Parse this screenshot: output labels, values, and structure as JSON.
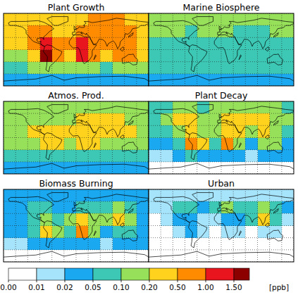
{
  "chart_data": {
    "type": "heatmap",
    "xlim": [
      -180,
      180
    ],
    "ylim": [
      -90,
      90
    ],
    "xticks": [
      -180,
      -150,
      -120,
      -90,
      -60,
      -30,
      0,
      30,
      60,
      90,
      120,
      150,
      180
    ],
    "yticks": [
      -90,
      -60,
      -30,
      0,
      30,
      60,
      90
    ],
    "grid": true,
    "tick_labels": false,
    "panels": [
      {
        "title": "Plant Growth",
        "cells": [
          [
            0.3,
            0.3,
            0.4,
            0.4,
            0.3,
            0.3,
            0.4,
            0.5,
            0.5,
            0.5,
            0.4,
            0.3
          ],
          [
            0.3,
            0.4,
            0.7,
            0.8,
            0.4,
            0.3,
            0.6,
            0.7,
            0.7,
            0.8,
            0.6,
            0.4
          ],
          [
            0.2,
            0.3,
            0.5,
            1.2,
            0.6,
            0.5,
            1.2,
            0.8,
            0.7,
            0.8,
            0.5,
            0.3
          ],
          [
            0.12,
            0.15,
            0.2,
            1.6,
            0.9,
            0.4,
            1.3,
            0.6,
            0.3,
            0.5,
            0.6,
            0.2
          ],
          [
            0.08,
            0.08,
            0.1,
            0.15,
            0.12,
            0.1,
            0.12,
            0.1,
            0.08,
            0.1,
            0.15,
            0.1
          ],
          [
            0.04,
            0.04,
            0.04,
            0.04,
            0.04,
            0.04,
            0.04,
            0.04,
            0.04,
            0.04,
            0.04,
            0.04
          ]
        ]
      },
      {
        "title": "Marine Biosphere",
        "cells": [
          [
            0.12,
            0.12,
            0.12,
            0.12,
            0.12,
            0.15,
            0.12,
            0.12,
            0.12,
            0.12,
            0.12,
            0.12
          ],
          [
            0.12,
            0.1,
            0.1,
            0.08,
            0.12,
            0.12,
            0.1,
            0.08,
            0.08,
            0.08,
            0.1,
            0.12
          ],
          [
            0.08,
            0.07,
            0.07,
            0.06,
            0.08,
            0.08,
            0.06,
            0.06,
            0.05,
            0.06,
            0.08,
            0.08
          ],
          [
            0.06,
            0.06,
            0.06,
            0.05,
            0.06,
            0.06,
            0.05,
            0.06,
            0.06,
            0.05,
            0.05,
            0.06
          ],
          [
            0.06,
            0.06,
            0.06,
            0.06,
            0.06,
            0.06,
            0.06,
            0.06,
            0.06,
            0.06,
            0.06,
            0.06
          ],
          [
            0.04,
            0.04,
            0.04,
            0.04,
            0.04,
            0.04,
            0.04,
            0.04,
            0.04,
            0.04,
            0.04,
            0.04
          ]
        ]
      },
      {
        "title": "Atmos. Prod.",
        "cells": [
          [
            0.12,
            0.12,
            0.12,
            0.12,
            0.12,
            0.12,
            0.12,
            0.12,
            0.12,
            0.12,
            0.12,
            0.12
          ],
          [
            0.12,
            0.12,
            0.15,
            0.15,
            0.12,
            0.15,
            0.25,
            0.2,
            0.2,
            0.2,
            0.15,
            0.12
          ],
          [
            0.15,
            0.15,
            0.2,
            0.3,
            0.2,
            0.2,
            0.3,
            0.25,
            0.2,
            0.25,
            0.2,
            0.15
          ],
          [
            0.1,
            0.1,
            0.12,
            0.3,
            0.2,
            0.15,
            0.3,
            0.2,
            0.12,
            0.15,
            0.15,
            0.1
          ],
          [
            0.06,
            0.06,
            0.06,
            0.06,
            0.06,
            0.06,
            0.06,
            0.06,
            0.06,
            0.06,
            0.06,
            0.06
          ],
          [
            0.03,
            0.03,
            0.03,
            0.03,
            0.03,
            0.03,
            0.03,
            0.03,
            0.03,
            0.03,
            0.03,
            0.03
          ]
        ]
      },
      {
        "title": "Plant Decay",
        "cells": [
          [
            0.08,
            0.08,
            0.12,
            0.12,
            0.08,
            0.1,
            0.15,
            0.15,
            0.15,
            0.15,
            0.12,
            0.08
          ],
          [
            0.08,
            0.1,
            0.2,
            0.2,
            0.1,
            0.1,
            0.2,
            0.2,
            0.2,
            0.25,
            0.15,
            0.1
          ],
          [
            0.05,
            0.08,
            0.15,
            0.4,
            0.15,
            0.12,
            0.4,
            0.2,
            0.15,
            0.3,
            0.15,
            0.08
          ],
          [
            0.02,
            0.03,
            0.05,
            0.6,
            0.2,
            0.08,
            0.6,
            0.15,
            0.04,
            0.1,
            0.15,
            0.04
          ],
          [
            0.015,
            0.015,
            0.02,
            0.05,
            0.03,
            0.03,
            0.03,
            0.02,
            0.015,
            0.02,
            0.04,
            0.02
          ],
          [
            0.005,
            0.005,
            0.005,
            0.005,
            0.005,
            0.005,
            0.005,
            0.005,
            0.005,
            0.005,
            0.005,
            0.005
          ]
        ]
      },
      {
        "title": "Biomass Burning",
        "cells": [
          [
            0.03,
            0.03,
            0.03,
            0.03,
            0.03,
            0.03,
            0.03,
            0.03,
            0.03,
            0.03,
            0.03,
            0.03
          ],
          [
            0.04,
            0.04,
            0.06,
            0.06,
            0.04,
            0.04,
            0.06,
            0.06,
            0.08,
            0.1,
            0.06,
            0.04
          ],
          [
            0.03,
            0.04,
            0.08,
            0.15,
            0.08,
            0.1,
            0.4,
            0.1,
            0.15,
            0.3,
            0.1,
            0.04
          ],
          [
            0.02,
            0.03,
            0.05,
            0.3,
            0.1,
            0.08,
            0.5,
            0.1,
            0.04,
            0.08,
            0.08,
            0.03
          ],
          [
            0.015,
            0.015,
            0.02,
            0.04,
            0.03,
            0.03,
            0.03,
            0.02,
            0.015,
            0.02,
            0.03,
            0.02
          ],
          [
            0.005,
            0.005,
            0.005,
            0.005,
            0.005,
            0.005,
            0.005,
            0.005,
            0.005,
            0.005,
            0.005,
            0.005
          ]
        ]
      },
      {
        "title": "Urban",
        "cells": [
          [
            0.015,
            0.015,
            0.015,
            0.015,
            0.015,
            0.015,
            0.015,
            0.015,
            0.015,
            0.015,
            0.015,
            0.015
          ],
          [
            0.01,
            0.015,
            0.05,
            0.06,
            0.03,
            0.05,
            0.1,
            0.08,
            0.05,
            0.15,
            0.08,
            0.02
          ],
          [
            0.005,
            0.01,
            0.03,
            0.04,
            0.01,
            0.01,
            0.02,
            0.04,
            0.08,
            0.2,
            0.05,
            0.01
          ],
          [
            0.005,
            0.005,
            0.01,
            0.02,
            0.01,
            0.005,
            0.01,
            0.01,
            0.005,
            0.01,
            0.01,
            0.005
          ],
          [
            0.005,
            0.005,
            0.005,
            0.005,
            0.005,
            0.005,
            0.005,
            0.005,
            0.005,
            0.005,
            0.005,
            0.005
          ],
          [
            0,
            0,
            0,
            0,
            0,
            0,
            0,
            0,
            0,
            0,
            0,
            0
          ]
        ]
      }
    ],
    "colorbar": {
      "label": "[ppb]",
      "ticks": [
        {
          "value": 0,
          "label": "0.00"
        },
        {
          "value": 0.01,
          "label": "0.01"
        },
        {
          "value": 0.02,
          "label": "0.02"
        },
        {
          "value": 0.05,
          "label": "0.05"
        },
        {
          "value": 0.1,
          "label": "0.10"
        },
        {
          "value": 0.2,
          "label": "0.20"
        },
        {
          "value": 0.5,
          "label": "0.50"
        },
        {
          "value": 1,
          "label": "1.00"
        },
        {
          "value": 1.5,
          "label": "1.50"
        }
      ],
      "colors": [
        "#ffffff",
        "#a6e4fb",
        "#1aa8f0",
        "#3cc8b4",
        "#96e05a",
        "#ffd21e",
        "#ff8c00",
        "#e8141e",
        "#8c0000"
      ]
    }
  }
}
